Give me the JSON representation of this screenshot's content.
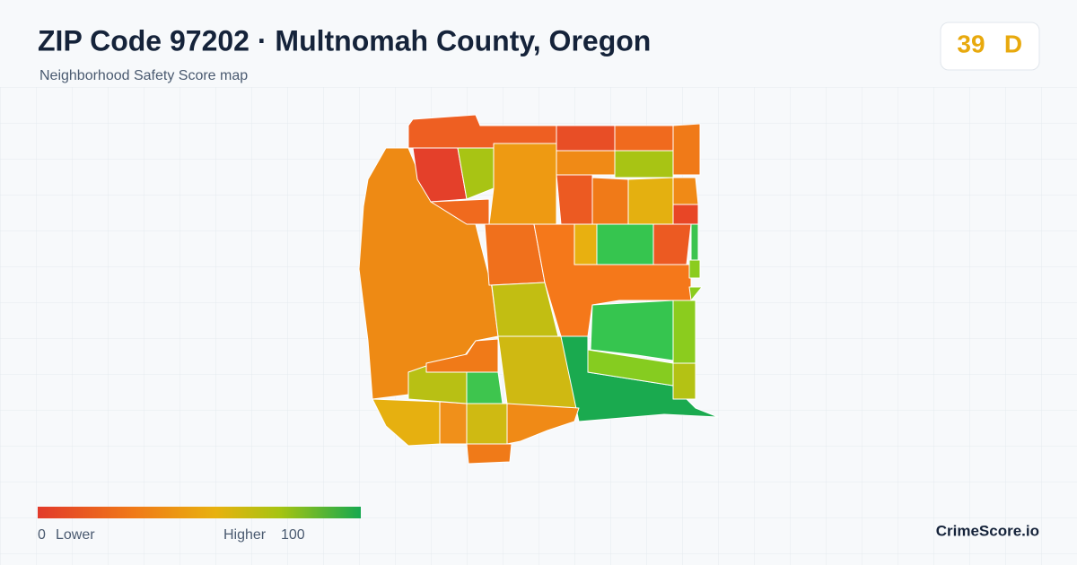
{
  "header": {
    "title": "ZIP Code 97202 · Multnomah County, Oregon",
    "subtitle": "Neighborhood Safety Score map"
  },
  "score": {
    "value": "39",
    "grade": "D"
  },
  "legend": {
    "min": "0",
    "min_label": "Lower",
    "max_label": "Higher",
    "max": "100"
  },
  "brand": "CrimeScore.io"
}
